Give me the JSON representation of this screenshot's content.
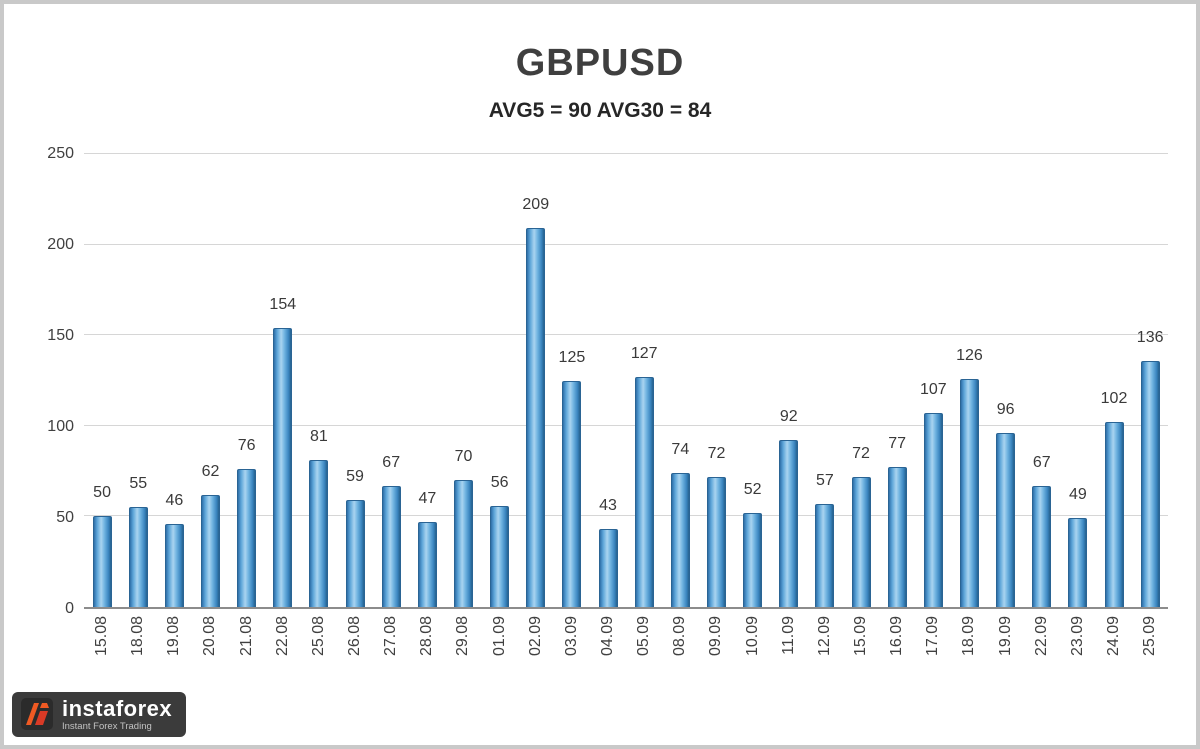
{
  "chart_data": {
    "type": "bar",
    "title": "GBPUSD",
    "subtitle": "AVG5 = 90 AVG30 = 84",
    "categories": [
      "15.08",
      "18.08",
      "19.08",
      "20.08",
      "21.08",
      "22.08",
      "25.08",
      "26.08",
      "27.08",
      "28.08",
      "29.08",
      "01.09",
      "02.09",
      "03.09",
      "04.09",
      "05.09",
      "08.09",
      "09.09",
      "10.09",
      "11.09",
      "12.09",
      "15.09",
      "16.09",
      "17.09",
      "18.09",
      "19.09",
      "22.09",
      "23.09",
      "24.09",
      "25.09"
    ],
    "values": [
      50,
      55,
      46,
      62,
      76,
      154,
      81,
      59,
      67,
      47,
      70,
      56,
      209,
      125,
      43,
      127,
      74,
      72,
      52,
      92,
      57,
      72,
      77,
      107,
      126,
      96,
      67,
      49,
      102,
      136
    ],
    "ylim": [
      0,
      250
    ],
    "yticks": [
      0,
      50,
      100,
      150,
      200,
      250
    ],
    "grid": true,
    "legend": "none",
    "bar_color": "#5ba4d8",
    "xlabel": "",
    "ylabel": ""
  },
  "branding": {
    "name": "instaforex",
    "tagline": "Instant Forex Trading",
    "accent_color": "#f05a23"
  }
}
